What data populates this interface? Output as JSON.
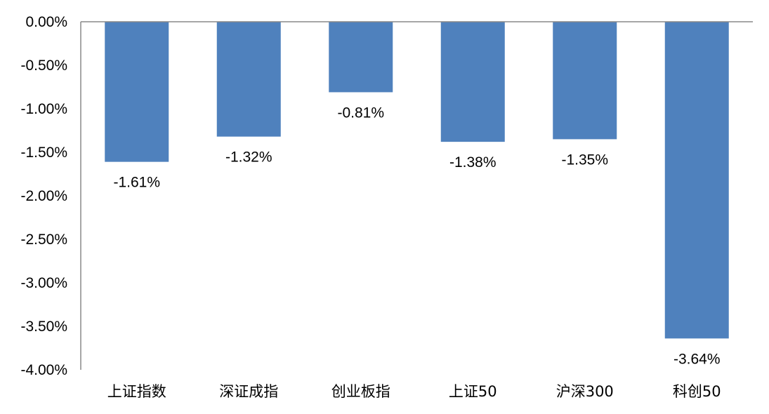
{
  "chart_data": {
    "type": "bar",
    "categories": [
      "上证指数",
      "深证成指",
      "创业板指",
      "上证50",
      "沪深300",
      "科创50"
    ],
    "values": [
      -1.61,
      -1.32,
      -0.81,
      -1.38,
      -1.35,
      -3.64
    ],
    "data_labels": [
      "-1.61%",
      "-1.32%",
      "-0.81%",
      "-1.38%",
      "-1.35%",
      "-3.64%"
    ],
    "ylim": [
      -4.0,
      0.0
    ],
    "yticks": [
      0.0,
      -0.5,
      -1.0,
      -1.5,
      -2.0,
      -2.5,
      -3.0,
      -3.5,
      -4.0
    ],
    "ytick_labels": [
      "0.00%",
      "-0.50%",
      "-1.00%",
      "-1.50%",
      "-2.00%",
      "-2.50%",
      "-3.00%",
      "-3.50%",
      "-4.00%"
    ],
    "bar_color": "#4f81bd",
    "axis_color": "#888888",
    "grid": false,
    "title": "",
    "xlabel": "",
    "ylabel": ""
  }
}
